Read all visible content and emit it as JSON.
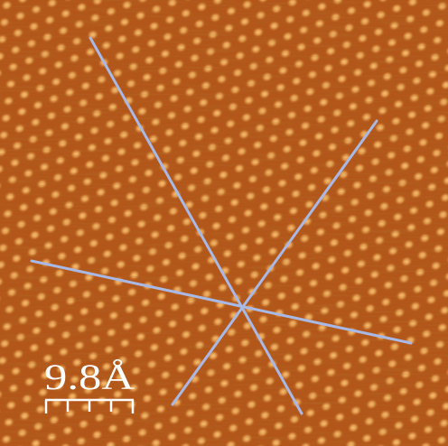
{
  "scale_bar": {
    "label": "9.8Å"
  }
}
